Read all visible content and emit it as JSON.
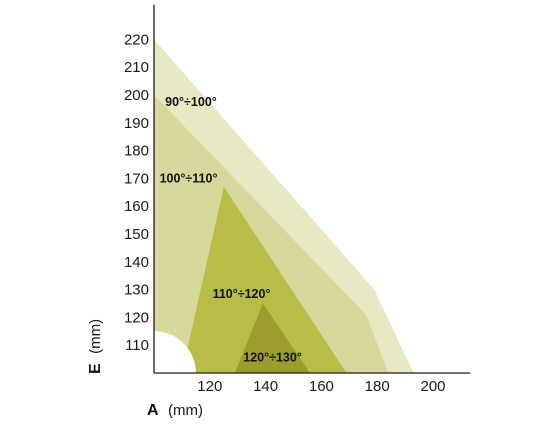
{
  "chart_data": {
    "type": "area",
    "x_axis": {
      "letter": "A",
      "unit": "(mm)",
      "ticks": [
        120,
        140,
        160,
        180,
        200
      ],
      "range": [
        100,
        212
      ]
    },
    "y_axis": {
      "letter": "E",
      "unit": "(mm)",
      "ticks": [
        110,
        120,
        130,
        140,
        150,
        160,
        170,
        180,
        190,
        200,
        210,
        220
      ],
      "range": [
        100,
        226
      ]
    },
    "regions": [
      {
        "name": "90°÷100°",
        "color": "#e8e8c4",
        "points": [
          [
            100,
            220
          ],
          [
            179,
            130
          ],
          [
            193,
            100
          ],
          [
            100,
            100
          ]
        ]
      },
      {
        "name": "100°÷110°",
        "color": "#d6d89c",
        "points": [
          [
            100,
            200
          ],
          [
            176,
            121
          ],
          [
            184,
            100
          ],
          [
            100,
            100
          ]
        ]
      },
      {
        "name": "110°÷120°",
        "color": "#b8bd48",
        "points": [
          [
            125,
            167
          ],
          [
            169,
            100
          ],
          [
            110,
            100
          ]
        ]
      },
      {
        "name": "120°÷130°",
        "color": "#9c9e2c",
        "points": [
          [
            139,
            125
          ],
          [
            156,
            100
          ],
          [
            129,
            100
          ]
        ]
      }
    ],
    "cutout": {
      "center": [
        100,
        100
      ],
      "radius_x": 15,
      "color": "#ffffff"
    },
    "label_anchors": [
      [
        104,
        197.5
      ],
      [
        102,
        170
      ],
      [
        121,
        128.5
      ],
      [
        132,
        105.5
      ]
    ]
  }
}
